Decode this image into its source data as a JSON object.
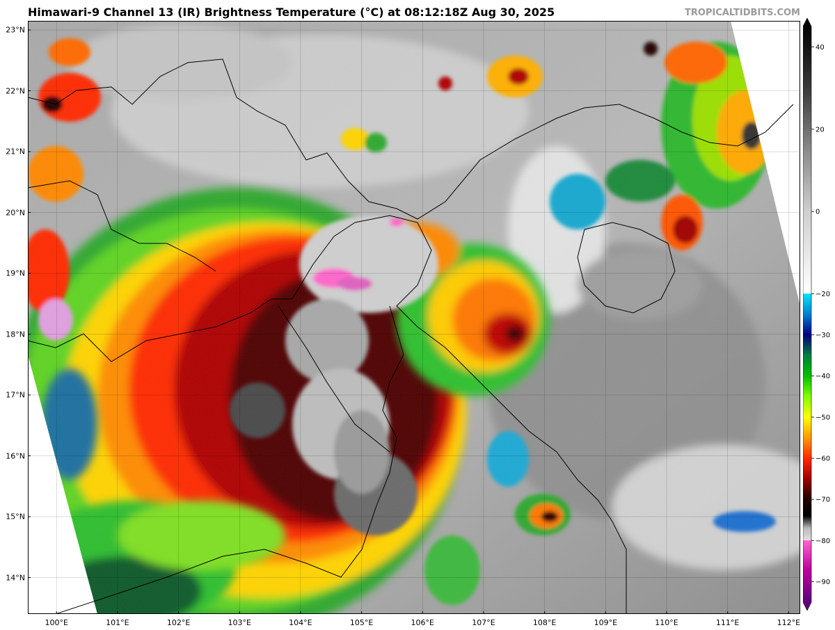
{
  "title": "Himawari-9 Channel 13 (IR) Brightness Temperature (°C) at 08:12:18Z Aug 30, 2025",
  "credit": "TROPICALTIDBITS.COM",
  "map": {
    "lon_ticks": [
      "100°E",
      "101°E",
      "102°E",
      "103°E",
      "104°E",
      "105°E",
      "106°E",
      "107°E",
      "108°E",
      "109°E",
      "110°E",
      "111°E",
      "112°E"
    ],
    "lat_ticks": [
      "23°N",
      "22°N",
      "21°N",
      "20°N",
      "19°N",
      "18°N",
      "17°N",
      "16°N",
      "15°N",
      "14°N"
    ],
    "lon_range": [
      99.53,
      112.19
    ],
    "lat_range": [
      13.4,
      23.15
    ],
    "features": [
      {
        "name": "dominant convective system over central Vietnam / Laos",
        "lon": 104.6,
        "lat": 17.0,
        "min_temp_c": -85
      },
      {
        "name": "coldest tops near Vinh",
        "lon": 104.4,
        "lat": 19.0,
        "min_temp_c": -82
      },
      {
        "name": "overshooting top in Gulf of Tonkin",
        "lon": 107.6,
        "lat": 17.9,
        "min_temp_c": -72
      },
      {
        "name": "convection near Hainan east coast",
        "lon": 110.3,
        "lat": 19.7,
        "min_temp_c": -70
      },
      {
        "name": "convection off central Vietnam coast",
        "lon": 107.9,
        "lat": 15.0,
        "min_temp_c": -72
      }
    ]
  },
  "colorbar": {
    "labels": [
      "40",
      "20",
      "0",
      "−20",
      "−30",
      "−40",
      "−50",
      "−60",
      "−70",
      "−80",
      "−90"
    ],
    "values": [
      40,
      20,
      0,
      -20,
      -30,
      -40,
      -50,
      -60,
      -70,
      -80,
      -90
    ],
    "range": [
      -95,
      45
    ],
    "stops": [
      {
        "v": 45,
        "c": "#000000"
      },
      {
        "v": 30,
        "c": "#3a3a3a"
      },
      {
        "v": 15,
        "c": "#8a8a8a"
      },
      {
        "v": 0,
        "c": "#cfcfcf"
      },
      {
        "v": -19.9,
        "c": "#ffffff"
      },
      {
        "v": -20,
        "c": "#00e5ff"
      },
      {
        "v": -25,
        "c": "#0080d0"
      },
      {
        "v": -30,
        "c": "#000080"
      },
      {
        "v": -35,
        "c": "#008040"
      },
      {
        "v": -40,
        "c": "#00c000"
      },
      {
        "v": -45,
        "c": "#80ff00"
      },
      {
        "v": -50,
        "c": "#ffff00"
      },
      {
        "v": -55,
        "c": "#ff9900"
      },
      {
        "v": -60,
        "c": "#ff2a00"
      },
      {
        "v": -65,
        "c": "#a00000"
      },
      {
        "v": -70,
        "c": "#200000"
      },
      {
        "v": -74,
        "c": "#000000"
      },
      {
        "v": -77,
        "c": "#bbbbbb"
      },
      {
        "v": -79.9,
        "c": "#e0e0e0"
      },
      {
        "v": -80,
        "c": "#ff66cc"
      },
      {
        "v": -87,
        "c": "#c000a0"
      },
      {
        "v": -95,
        "c": "#600080"
      }
    ]
  }
}
